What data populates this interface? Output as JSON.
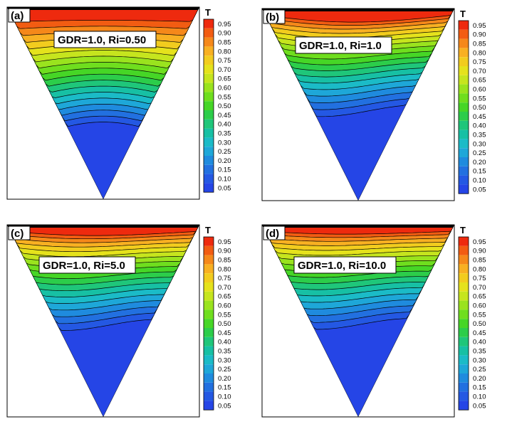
{
  "colorbar": {
    "title": "T",
    "levels": [
      "0.95",
      "0.90",
      "0.85",
      "0.80",
      "0.75",
      "0.70",
      "0.65",
      "0.60",
      "0.55",
      "0.50",
      "0.45",
      "0.40",
      "0.35",
      "0.30",
      "0.25",
      "0.20",
      "0.15",
      "0.10",
      "0.05"
    ],
    "colors": [
      "#ee2a0e",
      "#f25c12",
      "#f5881a",
      "#f8b022",
      "#f2cc1e",
      "#e5e21c",
      "#c6e51e",
      "#9ae31e",
      "#6fde1e",
      "#46d626",
      "#2ccd4a",
      "#1fc67a",
      "#17c0a4",
      "#1bbbc7",
      "#1ea7d8",
      "#1f8bde",
      "#2270e0",
      "#2458e3",
      "#2545e6"
    ]
  },
  "panels": [
    {
      "letter": "(a)",
      "annotation": "GDR=1.0,  Ri=0.50",
      "case": "a"
    },
    {
      "letter": "(b)",
      "annotation": "GDR=1.0, Ri=1.0",
      "case": "b"
    },
    {
      "letter": "(c)",
      "annotation": "GDR=1.0, Ri=5.0",
      "case": "c"
    },
    {
      "letter": "(d)",
      "annotation": "GDR=1.0, Ri=10.0",
      "case": "d"
    }
  ]
}
